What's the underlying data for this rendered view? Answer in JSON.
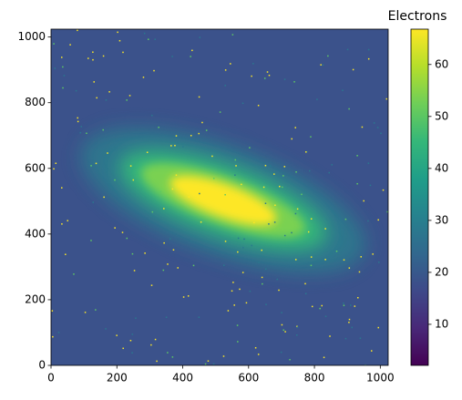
{
  "chart_data": {
    "type": "image",
    "colormap": "viridis",
    "xlim": [
      0,
      1024
    ],
    "ylim": [
      0,
      1024
    ],
    "xticks": [
      0,
      200,
      400,
      600,
      800,
      1000
    ],
    "yticks": [
      0,
      200,
      400,
      600,
      800,
      1000
    ],
    "colorbar": {
      "label": "Electrons",
      "lim": [
        2.1,
        66.8
      ],
      "ticks": [
        10,
        20,
        30,
        40,
        50,
        60
      ]
    }
  }
}
